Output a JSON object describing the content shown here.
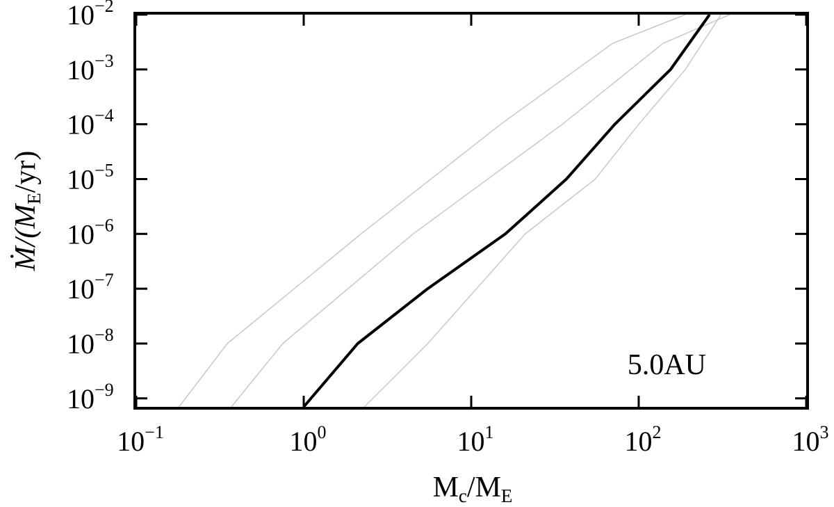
{
  "chart_data": {
    "type": "line",
    "x_scale": "log",
    "y_scale": "log",
    "xlim": [
      0.1,
      1000
    ],
    "ylim": [
      7e-10,
      0.01
    ],
    "xlabel": {
      "main": "M",
      "sub1": "c",
      "mid": "/M",
      "sub2": "E"
    },
    "ylabel": {
      "pre": "Ṁ/(M",
      "sub": "E",
      "post": "/yr)"
    },
    "x_ticks": [
      {
        "value": 0.1,
        "base": "10",
        "exp": "−1"
      },
      {
        "value": 1,
        "base": "10",
        "exp": "0"
      },
      {
        "value": 10,
        "base": "10",
        "exp": "1"
      },
      {
        "value": 100,
        "base": "10",
        "exp": "2"
      },
      {
        "value": 1000,
        "base": "10",
        "exp": "3"
      }
    ],
    "y_ticks": [
      {
        "value": 1e-09,
        "base": "10",
        "exp": "−9"
      },
      {
        "value": 1e-08,
        "base": "10",
        "exp": "−8"
      },
      {
        "value": 1e-07,
        "base": "10",
        "exp": "−7"
      },
      {
        "value": 1e-06,
        "base": "10",
        "exp": "−6"
      },
      {
        "value": 1e-05,
        "base": "10",
        "exp": "−5"
      },
      {
        "value": 0.0001,
        "base": "10",
        "exp": "−4"
      },
      {
        "value": 0.001,
        "base": "10",
        "exp": "−3"
      },
      {
        "value": 0.01,
        "base": "10",
        "exp": "−2"
      }
    ],
    "annotation": "5.0AU",
    "grid": false,
    "series": [
      {
        "color": "#c8c8c8",
        "width": 1.5,
        "points": [
          [
            0.18,
            7e-10
          ],
          [
            0.35,
            1e-08
          ],
          [
            2.2,
            1e-06
          ],
          [
            15,
            0.0001
          ],
          [
            70,
            0.003
          ],
          [
            190,
            0.01
          ]
        ]
      },
      {
        "color": "#c8c8c8",
        "width": 1.5,
        "points": [
          [
            0.37,
            7e-10
          ],
          [
            0.75,
            1e-08
          ],
          [
            4.5,
            1e-06
          ],
          [
            35,
            0.0001
          ],
          [
            140,
            0.003
          ],
          [
            350,
            0.01
          ]
        ]
      },
      {
        "color": "#000000",
        "width": 4,
        "points": [
          [
            1.0,
            7e-10
          ],
          [
            2.1,
            1e-08
          ],
          [
            5.5,
            1e-07
          ],
          [
            16,
            1e-06
          ],
          [
            37,
            1e-05
          ],
          [
            72,
            0.0001
          ],
          [
            155,
            0.001
          ],
          [
            265,
            0.01
          ]
        ]
      },
      {
        "color": "#c8c8c8",
        "width": 1.5,
        "points": [
          [
            2.3,
            7e-10
          ],
          [
            5.5,
            1e-08
          ],
          [
            21,
            1e-06
          ],
          [
            55,
            1e-05
          ],
          [
            100,
            0.0001
          ],
          [
            190,
            0.001
          ],
          [
            310,
            0.01
          ]
        ]
      }
    ]
  }
}
